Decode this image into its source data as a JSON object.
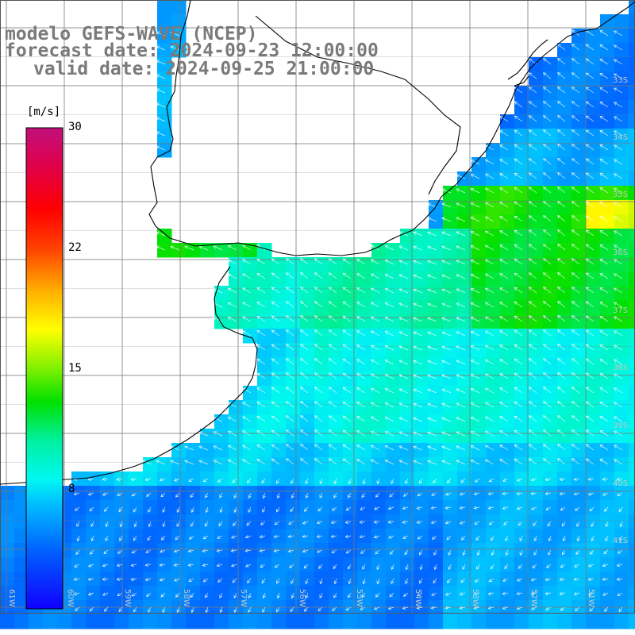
{
  "title": {
    "line1": "modelo GEFS-WAVE (NCEP)",
    "line2": "forecast date: 2024-09-23 12:00:00",
    "line3": "valid date: 2024-09-25 21:00:00"
  },
  "colorbar": {
    "unit": "[m/s]",
    "min": 0,
    "max": 30,
    "ticks": [
      "30",
      "22",
      "15",
      "8"
    ],
    "tick_values": [
      30,
      22,
      15,
      8
    ],
    "colors": [
      "#1000ff",
      "#0060ff",
      "#00b0ff",
      "#00f8f0",
      "#00f0a0",
      "#00e000",
      "#80f000",
      "#ffff00",
      "#ffb000",
      "#ff5000",
      "#ff0000",
      "#e0004a",
      "#c0107a"
    ]
  },
  "map": {
    "field": "wind speed [m/s] with wind direction arrows",
    "lon_labels": [
      "61W",
      "60W",
      "59W",
      "58W",
      "57W",
      "56W",
      "55W",
      "54W",
      "53W",
      "52W",
      "51W"
    ],
    "lat_labels": [
      "33S",
      "34S",
      "35S",
      "36S",
      "37S",
      "38S",
      "39S",
      "40S",
      "41S"
    ],
    "colors": {
      "land": "#ffffff",
      "coastline": "#000000",
      "grid": "#7a7a7a",
      "arrows": "#ffffff"
    }
  }
}
